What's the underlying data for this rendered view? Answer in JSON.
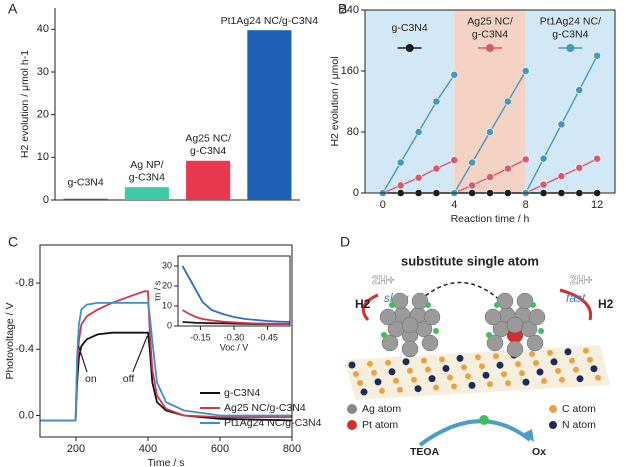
{
  "chart_data": [
    {
      "panel": "A",
      "type": "bar",
      "ylabel": "H2 evolution / μmol h-1",
      "categories": [
        "g-C3N4",
        "Ag NP/g-C3N4",
        "Ag25 NC/g-C3N4",
        "Pt1Ag24 NC/g-C3N4"
      ],
      "values": [
        0.3,
        3,
        9.2,
        39.8
      ],
      "colors": [
        "#555555",
        "#3ec9a7",
        "#e8384f",
        "#1f5fb5"
      ],
      "ylim": [
        0,
        45
      ],
      "yticks": [
        0,
        10,
        20,
        30,
        40
      ]
    },
    {
      "panel": "B",
      "type": "line",
      "xlabel": "Reaction time / h",
      "ylabel": "H2 evolution / μmol",
      "xlim": [
        -1,
        13
      ],
      "xticks": [
        0,
        4,
        8,
        12
      ],
      "ylim": [
        0,
        240
      ],
      "yticks": [
        0,
        80,
        160,
        240
      ],
      "markers": true,
      "legend": "regions",
      "regions": [
        {
          "from": -1,
          "to": 4,
          "color": "#d3e8f6"
        },
        {
          "from": 4,
          "to": 8,
          "color": "#f5d3c4"
        },
        {
          "from": 8,
          "to": 13,
          "color": "#d3e8f6"
        }
      ],
      "series": [
        {
          "name": "g-C3N4",
          "color": "#1a1a1a",
          "x": [
            0,
            1,
            2,
            3,
            4,
            4,
            4,
            5,
            6,
            7,
            8,
            8,
            8,
            9,
            10,
            11,
            12
          ],
          "values": [
            0,
            0,
            0,
            0,
            0,
            null,
            0,
            0,
            0,
            0,
            0,
            null,
            0,
            0,
            0,
            0,
            0
          ]
        },
        {
          "name": "Ag25 NC/g-C3N4",
          "color": "#d9596c",
          "x": [
            0,
            1,
            2,
            3,
            4,
            4,
            4,
            5,
            6,
            7,
            8,
            8,
            8,
            9,
            10,
            11,
            12
          ],
          "values": [
            0,
            10,
            20,
            32,
            43,
            null,
            0,
            10,
            21,
            32,
            44,
            null,
            0,
            11,
            22,
            33,
            45
          ]
        },
        {
          "name": "Pt1Ag24 NC/g-C3N4",
          "color": "#4a97be",
          "x": [
            0,
            1,
            2,
            3,
            4,
            4,
            4,
            5,
            6,
            7,
            8,
            8,
            8,
            9,
            10,
            11,
            12
          ],
          "values": [
            0,
            40,
            80,
            120,
            155,
            null,
            0,
            40,
            80,
            120,
            160,
            null,
            0,
            45,
            90,
            135,
            180
          ]
        }
      ]
    },
    {
      "panel": "C",
      "type": "line",
      "xlabel": "Time / s",
      "ylabel": "Photovoltage / V",
      "xlim": [
        100,
        800
      ],
      "xticks": [
        200,
        400,
        600,
        800
      ],
      "ylim": [
        0.13,
        -1.03
      ],
      "yticks": [
        -0.8,
        -0.4,
        {
          "value": 0,
          "label": "0.0"
        }
      ],
      "legend": "lower right",
      "annotations": [
        "on",
        "off"
      ],
      "x": [
        100,
        199,
        203,
        208,
        215,
        230,
        260,
        300,
        350,
        390,
        400,
        405,
        412,
        425,
        450,
        500,
        600,
        800
      ],
      "series": [
        {
          "name": "g-C3N4",
          "color": "#111111",
          "values": [
            0.03,
            0.03,
            -0.2,
            -0.35,
            -0.42,
            -0.46,
            -0.49,
            -0.5,
            -0.5,
            -0.5,
            -0.5,
            -0.4,
            -0.2,
            -0.08,
            -0.03,
            0,
            0.02,
            0.03
          ]
        },
        {
          "name": "Ag25 NC/g-C3N4",
          "color": "#d6344a",
          "values": [
            0.03,
            0.03,
            -0.3,
            -0.45,
            -0.55,
            -0.6,
            -0.64,
            -0.68,
            -0.72,
            -0.75,
            -0.75,
            -0.5,
            -0.28,
            -0.12,
            -0.04,
            0,
            0.01,
            0.01
          ]
        },
        {
          "name": "Pt1Ag24 NC/g-C3N4",
          "color": "#3d8fd1",
          "values": [
            0.03,
            0.03,
            -0.35,
            -0.55,
            -0.64,
            -0.67,
            -0.68,
            -0.68,
            -0.68,
            -0.68,
            -0.68,
            -0.6,
            -0.45,
            -0.2,
            -0.08,
            -0.03,
            0,
            0
          ]
        }
      ],
      "inset": {
        "type": "line",
        "xlabel": "Voc / V",
        "ylabel": "τn / s",
        "xlim": [
          -0.05,
          -0.55
        ],
        "xticks": [
          -0.15,
          {
            "value": -0.3,
            "label": "-0.30"
          },
          -0.45
        ],
        "ylim": [
          0,
          35
        ],
        "yticks": [
          0,
          10,
          20,
          30
        ],
        "x": [
          -0.07,
          -0.1,
          -0.13,
          -0.16,
          -0.2,
          -0.25,
          -0.3,
          -0.35,
          -0.4,
          -0.45,
          -0.5,
          -0.55
        ],
        "series": [
          {
            "color": "#1a1a1a",
            "values": [
              2,
              1.8,
              1.6,
              1.5,
              1.4,
              1.3,
              1.2,
              1.1,
              1,
              1,
              1,
              1
            ]
          },
          {
            "color": "#d6344a",
            "values": [
              8,
              6,
              4.5,
              3.5,
              2.8,
              2.2,
              1.8,
              1.5,
              1.3,
              1.2,
              1.1,
              1
            ]
          },
          {
            "color": "#2f6fbf",
            "values": [
              30,
              24,
              18,
              12,
              8,
              6,
              4.5,
              3.5,
              3,
              2.5,
              2.2,
              2
            ]
          }
        ]
      }
    }
  ],
  "diagram": {
    "panel": "D",
    "title": "substitute single atom",
    "left": {
      "reactant": "2H+",
      "rate": "slow",
      "product": "H2"
    },
    "right": {
      "reactant": "2H+",
      "rate": "fast",
      "product": "H2"
    },
    "legend": [
      "Ag atom",
      "Pt atom",
      "C atom",
      "N atom"
    ],
    "donor": "TEOA",
    "oxidized": "Ox"
  }
}
